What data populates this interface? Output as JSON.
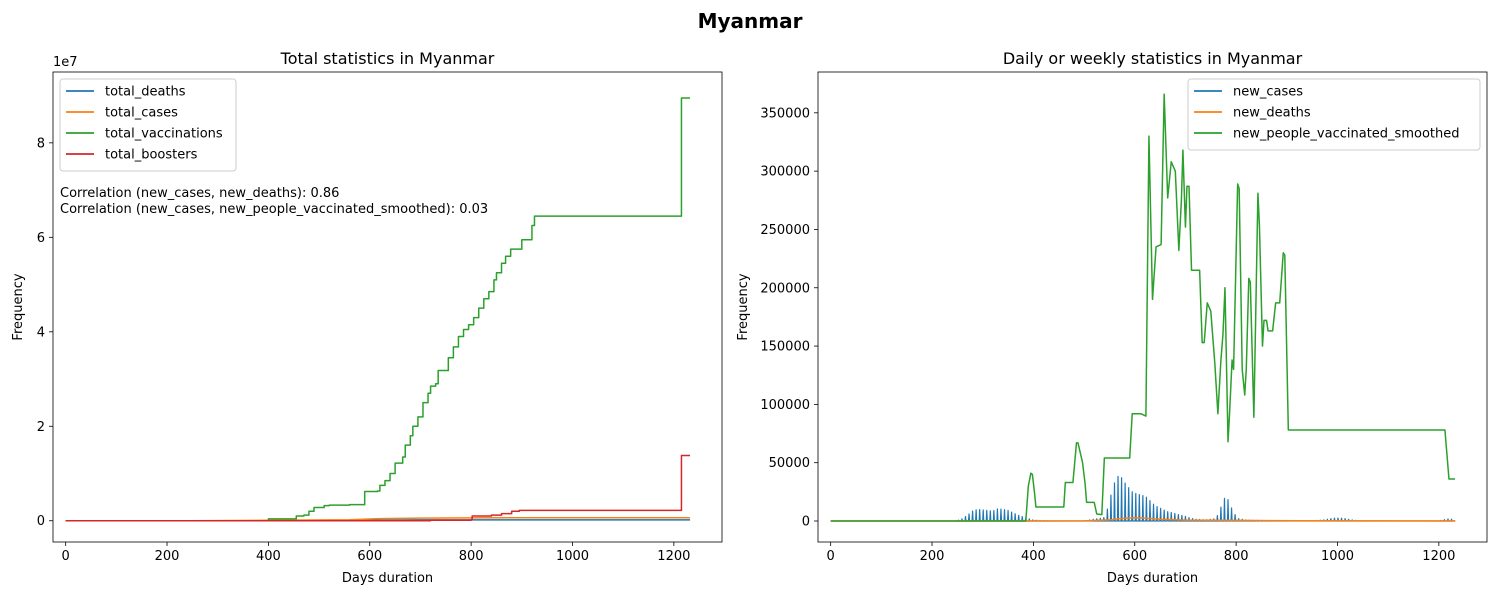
{
  "figure_title": "Myanmar",
  "chart_data": [
    {
      "type": "line",
      "title": "Total statistics in Myanmar",
      "xlabel": "Days duration",
      "ylabel": "Frequency",
      "y_offset_label": "1e7",
      "xlim": [
        -25,
        1295
      ],
      "ylim": [
        -4500000,
        95000000
      ],
      "xticks": [
        0,
        200,
        400,
        600,
        800,
        1000,
        1200
      ],
      "xtick_labels": [
        "0",
        "200",
        "400",
        "600",
        "800",
        "1000",
        "1200"
      ],
      "yticks": [
        0,
        20000000,
        40000000,
        60000000,
        80000000
      ],
      "ytick_labels": [
        "0",
        "2",
        "4",
        "6",
        "8"
      ],
      "legend_position": "upper-left",
      "annotations": [
        "Correlation (new_cases, new_deaths): 0.86",
        "Correlation (new_cases, new_people_vaccinated_smoothed): 0.03"
      ],
      "series": [
        {
          "name": "total_deaths",
          "color": "#1f77b4",
          "points": [
            [
              0,
              0
            ],
            [
              200,
              0
            ],
            [
              400,
              0
            ],
            [
              560,
              100000
            ],
            [
              700,
              180000
            ],
            [
              900,
              190000
            ],
            [
              1232,
              192000
            ]
          ]
        },
        {
          "name": "total_cases",
          "color": "#ff7f0e",
          "points": [
            [
              0,
              0
            ],
            [
              250,
              10000
            ],
            [
              400,
              100000
            ],
            [
              560,
              200000
            ],
            [
              620,
              450000
            ],
            [
              700,
              550000
            ],
            [
              800,
              610000
            ],
            [
              900,
              630000
            ],
            [
              1232,
              640000
            ]
          ]
        },
        {
          "name": "total_vaccinations",
          "color": "#2ca02c",
          "step": true,
          "points": [
            [
              0,
              0
            ],
            [
              396,
              0
            ],
            [
              400,
              400000
            ],
            [
              450,
              400000
            ],
            [
              455,
              1000000
            ],
            [
              470,
              1200000
            ],
            [
              480,
              2000000
            ],
            [
              490,
              2800000
            ],
            [
              510,
              3200000
            ],
            [
              520,
              3300000
            ],
            [
              560,
              3400000
            ],
            [
              585,
              3400000
            ],
            [
              590,
              6200000
            ],
            [
              615,
              6300000
            ],
            [
              620,
              7500000
            ],
            [
              630,
              8500000
            ],
            [
              640,
              10000000
            ],
            [
              650,
              12200000
            ],
            [
              665,
              13500000
            ],
            [
              670,
              16000000
            ],
            [
              680,
              18000000
            ],
            [
              685,
              20000000
            ],
            [
              695,
              22000000
            ],
            [
              705,
              25000000
            ],
            [
              715,
              27000000
            ],
            [
              720,
              28500000
            ],
            [
              730,
              29000000
            ],
            [
              735,
              31800000
            ],
            [
              755,
              34500000
            ],
            [
              765,
              36800000
            ],
            [
              775,
              39000000
            ],
            [
              785,
              40500000
            ],
            [
              795,
              41500000
            ],
            [
              805,
              43000000
            ],
            [
              815,
              45000000
            ],
            [
              825,
              47000000
            ],
            [
              835,
              48500000
            ],
            [
              845,
              51000000
            ],
            [
              850,
              52500000
            ],
            [
              860,
              54500000
            ],
            [
              868,
              56000000
            ],
            [
              878,
              57500000
            ],
            [
              895,
              57500000
            ],
            [
              900,
              59500000
            ],
            [
              920,
              62500000
            ],
            [
              925,
              64500000
            ],
            [
              1212,
              64500000
            ],
            [
              1215,
              89500000
            ],
            [
              1232,
              89500000
            ]
          ]
        },
        {
          "name": "total_boosters",
          "color": "#d62728",
          "step": true,
          "points": [
            [
              0,
              0
            ],
            [
              590,
              0
            ],
            [
              720,
              100000
            ],
            [
              800,
              200000
            ],
            [
              802,
              1000000
            ],
            [
              840,
              1200000
            ],
            [
              860,
              1500000
            ],
            [
              880,
              2000000
            ],
            [
              895,
              2200000
            ],
            [
              1212,
              2200000
            ],
            [
              1215,
              13800000
            ],
            [
              1232,
              13800000
            ]
          ]
        }
      ]
    },
    {
      "type": "line",
      "title": "Daily or weekly statistics in Myanmar",
      "xlabel": "Days duration",
      "ylabel": "Frequency",
      "xlim": [
        -25,
        1295
      ],
      "ylim": [
        -18000,
        385000
      ],
      "xticks": [
        0,
        200,
        400,
        600,
        800,
        1000,
        1200
      ],
      "xtick_labels": [
        "0",
        "200",
        "400",
        "600",
        "800",
        "1000",
        "1200"
      ],
      "yticks": [
        0,
        50000,
        100000,
        150000,
        200000,
        250000,
        300000,
        350000
      ],
      "ytick_labels": [
        "0",
        "50000",
        "100000",
        "150000",
        "200000",
        "250000",
        "300000",
        "350000"
      ],
      "legend_position": "upper-right",
      "series": [
        {
          "name": "new_cases",
          "color": "#1f77b4",
          "spiky": true,
          "points": [
            [
              0,
              0
            ],
            [
              245,
              0
            ],
            [
              255,
              1000
            ],
            [
              262,
              2500
            ],
            [
              270,
              5000
            ],
            [
              280,
              8500
            ],
            [
              290,
              10000
            ],
            [
              300,
              9500
            ],
            [
              310,
              9000
            ],
            [
              320,
              8500
            ],
            [
              330,
              10500
            ],
            [
              340,
              10000
            ],
            [
              350,
              9000
            ],
            [
              360,
              7000
            ],
            [
              370,
              5000
            ],
            [
              380,
              3500
            ],
            [
              390,
              2000
            ],
            [
              400,
              800
            ],
            [
              420,
              300
            ],
            [
              500,
              100
            ],
            [
              540,
              3000
            ],
            [
              550,
              15000
            ],
            [
              555,
              27000
            ],
            [
              563,
              36000
            ],
            [
              570,
              40000
            ],
            [
              577,
              35000
            ],
            [
              585,
              30000
            ],
            [
              595,
              25000
            ],
            [
              605,
              23000
            ],
            [
              615,
              22000
            ],
            [
              625,
              20000
            ],
            [
              635,
              15000
            ],
            [
              645,
              12000
            ],
            [
              655,
              10000
            ],
            [
              665,
              8000
            ],
            [
              675,
              7000
            ],
            [
              690,
              5000
            ],
            [
              700,
              4000
            ],
            [
              710,
              2500
            ],
            [
              720,
              1500
            ],
            [
              740,
              1000
            ],
            [
              760,
              2000
            ],
            [
              768,
              9000
            ],
            [
              775,
              19000
            ],
            [
              782,
              20500
            ],
            [
              790,
              12000
            ],
            [
              797,
              6000
            ],
            [
              805,
              2000
            ],
            [
              820,
              800
            ],
            [
              850,
              400
            ],
            [
              950,
              300
            ],
            [
              975,
              1000
            ],
            [
              985,
              2000
            ],
            [
              995,
              2500
            ],
            [
              1005,
              2500
            ],
            [
              1015,
              2000
            ],
            [
              1025,
              1200
            ],
            [
              1040,
              300
            ],
            [
              1200,
              200
            ],
            [
              1215,
              1500
            ],
            [
              1222,
              2000
            ],
            [
              1232,
              500
            ]
          ]
        },
        {
          "name": "new_deaths",
          "color": "#ff7f0e",
          "points": [
            [
              0,
              0
            ],
            [
              400,
              0
            ],
            [
              500,
              100
            ],
            [
              550,
              1000
            ],
            [
              570,
              2000
            ],
            [
              600,
              2800
            ],
            [
              620,
              2500
            ],
            [
              650,
              1500
            ],
            [
              700,
              800
            ],
            [
              800,
              500
            ],
            [
              1000,
              100
            ],
            [
              1232,
              50
            ]
          ]
        },
        {
          "name": "new_people_vaccinated_smoothed",
          "color": "#2ca02c",
          "points": [
            [
              0,
              0
            ],
            [
              385,
              0
            ],
            [
              390,
              30000
            ],
            [
              395,
              41000
            ],
            [
              398,
              40000
            ],
            [
              402,
              25000
            ],
            [
              405,
              12000
            ],
            [
              460,
              12000
            ],
            [
              463,
              33000
            ],
            [
              478,
              33000
            ],
            [
              485,
              67000
            ],
            [
              488,
              67000
            ],
            [
              497,
              50000
            ],
            [
              502,
              32000
            ],
            [
              505,
              16000
            ],
            [
              520,
              16000
            ],
            [
              525,
              6000
            ],
            [
              535,
              5500
            ],
            [
              540,
              54000
            ],
            [
              590,
              54000
            ],
            [
              595,
              92000
            ],
            [
              612,
              92000
            ],
            [
              622,
              90000
            ],
            [
              628,
              330000
            ],
            [
              635,
              190000
            ],
            [
              642,
              235000
            ],
            [
              652,
              237000
            ],
            [
              658,
              366000
            ],
            [
              665,
              277000
            ],
            [
              672,
              308000
            ],
            [
              680,
              300000
            ],
            [
              687,
              232000
            ],
            [
              692,
              275000
            ],
            [
              695,
              318000
            ],
            [
              700,
              252000
            ],
            [
              703,
              287000
            ],
            [
              707,
              287000
            ],
            [
              712,
              215000
            ],
            [
              728,
              215000
            ],
            [
              733,
              153000
            ],
            [
              737,
              153000
            ],
            [
              743,
              187000
            ],
            [
              750,
              180000
            ],
            [
              758,
              135000
            ],
            [
              764,
              92000
            ],
            [
              770,
              138000
            ],
            [
              774,
              160000
            ],
            [
              778,
              200000
            ],
            [
              784,
              68000
            ],
            [
              787,
              92000
            ],
            [
              792,
              138000
            ],
            [
              795,
              130000
            ],
            [
              803,
              289000
            ],
            [
              806,
              285000
            ],
            [
              812,
              130000
            ],
            [
              817,
              108000
            ],
            [
              820,
              130000
            ],
            [
              825,
              208000
            ],
            [
              828,
              205000
            ],
            [
              835,
              89000
            ],
            [
              843,
              281000
            ],
            [
              846,
              253000
            ],
            [
              852,
              150000
            ],
            [
              855,
              172000
            ],
            [
              860,
              172000
            ],
            [
              863,
              163000
            ],
            [
              872,
              163000
            ],
            [
              878,
              187000
            ],
            [
              886,
              187000
            ],
            [
              893,
              230000
            ],
            [
              896,
              228000
            ],
            [
              903,
              78000
            ],
            [
              1212,
              78000
            ],
            [
              1220,
              36000
            ],
            [
              1232,
              36000
            ]
          ]
        }
      ]
    }
  ]
}
